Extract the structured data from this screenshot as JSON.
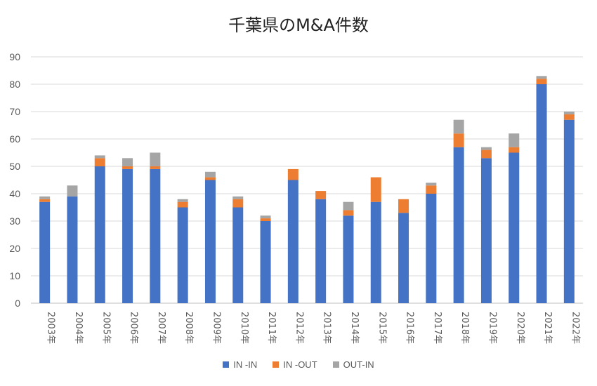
{
  "chart_data": {
    "type": "bar",
    "stacked": true,
    "title": "千葉県のM&A件数",
    "categories": [
      "2003年",
      "2004年",
      "2005年",
      "2006年",
      "2007年",
      "2008年",
      "2009年",
      "2010年",
      "2011年",
      "2012年",
      "2013年",
      "2014年",
      "2015年",
      "2016年",
      "2017年",
      "2018年",
      "2019年",
      "2020年",
      "2021年",
      "2022年"
    ],
    "series": [
      {
        "name": "IN -IN",
        "color": "#4472C4",
        "values": [
          37,
          39,
          50,
          49,
          49,
          35,
          45,
          35,
          30,
          45,
          38,
          32,
          37,
          33,
          40,
          57,
          53,
          55,
          80,
          67
        ]
      },
      {
        "name": "IN -OUT",
        "color": "#ED7D31",
        "values": [
          1,
          0,
          3,
          1,
          1,
          2,
          1,
          3,
          1,
          4,
          3,
          2,
          9,
          5,
          3,
          5,
          3,
          2,
          2,
          2
        ]
      },
      {
        "name": "OUT-IN",
        "color": "#A5A5A5",
        "values": [
          1,
          4,
          1,
          3,
          5,
          1,
          2,
          1,
          1,
          0,
          0,
          3,
          0,
          0,
          1,
          5,
          1,
          5,
          1,
          1
        ]
      }
    ],
    "ylim": [
      0,
      90
    ],
    "yticks": [
      0,
      10,
      20,
      30,
      40,
      50,
      60,
      70,
      80,
      90
    ],
    "grid": true,
    "legend_position": "bottom",
    "xlabel": "",
    "ylabel": ""
  }
}
